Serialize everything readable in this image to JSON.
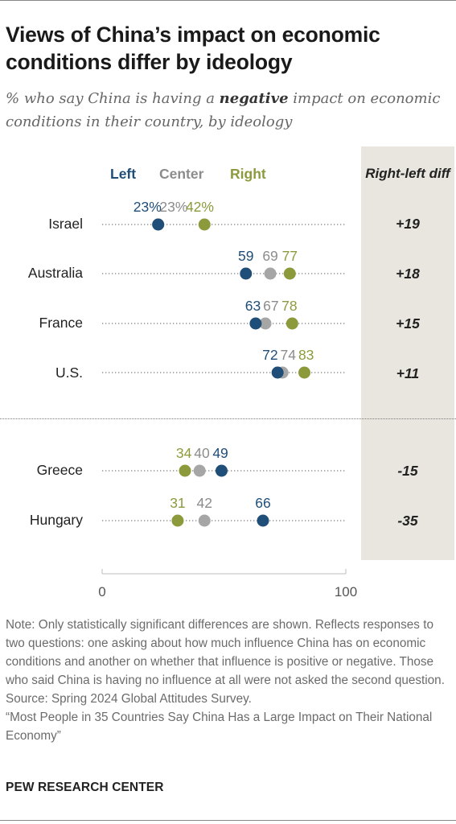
{
  "title": "Views of China’s impact on economic conditions differ by ideology",
  "subtitle": {
    "before": "% who say China is having a ",
    "emphasis": "negative",
    "after": " impact on economic conditions in their country, by ideology"
  },
  "legend": {
    "left": "Left",
    "center": "Center",
    "right": "Right"
  },
  "diff_header": "Right-left diff",
  "colors": {
    "left": "#1f4e79",
    "center": "#a6a6a6",
    "right": "#8d9a3c",
    "panel": "#e9e6df"
  },
  "chart_data": {
    "type": "dot",
    "xlim": [
      0,
      100
    ],
    "xticks": [
      "0",
      "100"
    ],
    "series": [
      {
        "name": "Left"
      },
      {
        "name": "Center"
      },
      {
        "name": "Right"
      }
    ],
    "rows": [
      {
        "country": "Israel",
        "left": 23,
        "center": 23,
        "right": 42,
        "left_label": "23%",
        "center_label": "23%",
        "right_label": "42%",
        "diff": "+19"
      },
      {
        "country": "Australia",
        "left": 59,
        "center": 69,
        "right": 77,
        "left_label": "59",
        "center_label": "69",
        "right_label": "77",
        "diff": "+18"
      },
      {
        "country": "France",
        "left": 63,
        "center": 67,
        "right": 78,
        "left_label": "63",
        "center_label": "67",
        "right_label": "78",
        "diff": "+15"
      },
      {
        "country": "U.S.",
        "left": 72,
        "center": 74,
        "right": 83,
        "left_label": "72",
        "center_label": "74",
        "right_label": "83",
        "diff": "+11"
      },
      {
        "country": "Greece",
        "left": 49,
        "center": 40,
        "right": 34,
        "left_label": "49",
        "center_label": "40",
        "right_label": "34",
        "diff": "-15"
      },
      {
        "country": "Hungary",
        "left": 66,
        "center": 42,
        "right": 31,
        "left_label": "66",
        "center_label": "42",
        "right_label": "31",
        "diff": "-35"
      }
    ]
  },
  "note": "Note: Only statistically significant differences are shown. Reflects responses to two questions: one asking about how much influence China has on economic conditions and another on whether that influence is positive or negative. Those who said China is having no influence at all were not asked the second question.",
  "source": "Source: Spring 2024 Global Attitudes Survey.",
  "report": "“Most People in 35 Countries Say China Has a Large Impact on Their National Economy”",
  "brand": "PEW RESEARCH CENTER"
}
